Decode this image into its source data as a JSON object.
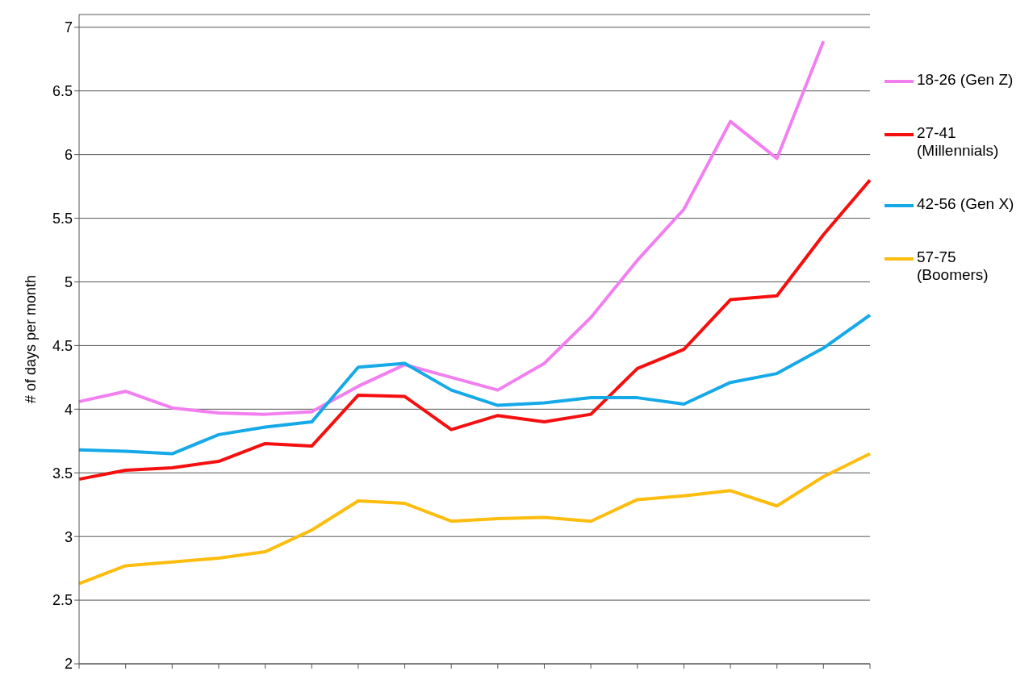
{
  "chart_data": {
    "type": "line",
    "ylabel": "# of days per month",
    "categories": [
      null,
      null,
      null,
      null,
      null,
      null,
      null,
      null,
      null,
      null,
      null,
      null,
      null,
      null,
      null,
      null,
      null,
      null
    ],
    "series": [
      {
        "name": "18-26 (Gen Z)",
        "color": "#f27ff0",
        "values": [
          4.06,
          4.14,
          4.01,
          3.97,
          3.96,
          3.98,
          4.18,
          4.35,
          4.25,
          4.15,
          4.36,
          4.72,
          5.17,
          5.57,
          6.26,
          5.97,
          6.89,
          null
        ]
      },
      {
        "name": "27-41 (Millennials)",
        "color": "#f50f0f",
        "values": [
          3.45,
          3.52,
          3.54,
          3.59,
          3.73,
          3.71,
          4.11,
          4.1,
          3.84,
          3.95,
          3.9,
          3.96,
          4.32,
          4.47,
          4.86,
          4.89,
          5.37,
          5.8
        ]
      },
      {
        "name": "42-56 (Gen X)",
        "color": "#16a9e8",
        "values": [
          3.68,
          3.67,
          3.65,
          3.8,
          3.86,
          3.9,
          4.33,
          4.36,
          4.15,
          4.03,
          4.05,
          4.09,
          4.09,
          4.04,
          4.21,
          4.28,
          4.48,
          4.74
        ]
      },
      {
        "name": "57-75 (Boomers)",
        "color": "#fcbd0f",
        "values": [
          2.63,
          2.77,
          2.8,
          2.83,
          2.88,
          3.05,
          3.28,
          3.26,
          3.12,
          3.14,
          3.15,
          3.12,
          3.29,
          3.32,
          3.36,
          3.24,
          3.47,
          3.65
        ]
      }
    ],
    "ylim": [
      2,
      7.1
    ],
    "yticks": [
      2,
      2.5,
      3,
      3.5,
      4,
      4.5,
      5,
      5.5,
      6,
      6.5,
      7
    ],
    "grid": "y",
    "legend": "right",
    "marker": "none",
    "line_style": "solid"
  }
}
